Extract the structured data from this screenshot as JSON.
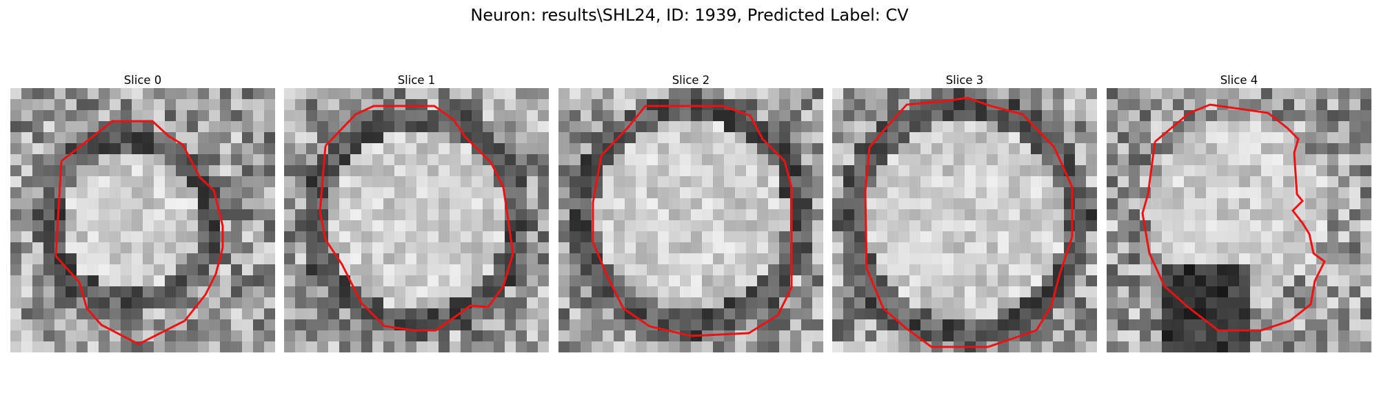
{
  "figure": {
    "title": "Neuron: results\\SHL24, ID: 1939, Predicted Label: CV",
    "contour_color": "#ee1111"
  },
  "panels": [
    {
      "title": "Slice 0",
      "seed": 11,
      "center": [
        0.45,
        0.5
      ],
      "radius": 0.3,
      "dark_ring": true
    },
    {
      "title": "Slice 1",
      "seed": 23,
      "center": [
        0.5,
        0.5
      ],
      "radius": 0.38,
      "dark_ring": true
    },
    {
      "title": "Slice 2",
      "seed": 37,
      "center": [
        0.5,
        0.48
      ],
      "radius": 0.4,
      "dark_ring": true
    },
    {
      "title": "Slice 3",
      "seed": 41,
      "center": [
        0.5,
        0.5
      ],
      "radius": 0.42,
      "dark_ring": true
    },
    {
      "title": "Slice 4",
      "seed": 59,
      "center": [
        0.5,
        0.45
      ],
      "radius": 0.38,
      "dark_ring": false
    }
  ]
}
